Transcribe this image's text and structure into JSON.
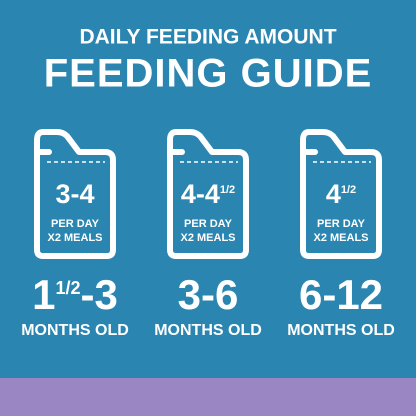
{
  "header": {
    "subtitle": "DAILY FEEDING AMOUNT",
    "title": "FEEDING GUIDE"
  },
  "columns": [
    {
      "amount": [
        {
          "text": "3-4"
        }
      ],
      "per_day": "PER DAY",
      "meals": "X2 MEALS",
      "age": [
        {
          "text": "1"
        },
        {
          "text": "1/2",
          "small": true
        },
        {
          "text": "-3"
        }
      ],
      "age_unit": "MONTHS OLD"
    },
    {
      "amount": [
        {
          "text": "4-4"
        },
        {
          "text": "1/2",
          "small": true
        }
      ],
      "per_day": "PER DAY",
      "meals": "X2 MEALS",
      "age": [
        {
          "text": "3-6"
        }
      ],
      "age_unit": "MONTHS OLD"
    },
    {
      "amount": [
        {
          "text": "4"
        },
        {
          "text": "1/2",
          "small": true
        }
      ],
      "per_day": "PER DAY",
      "meals": "X2 MEALS",
      "age": [
        {
          "text": "6-12"
        }
      ],
      "age_unit": "MONTHS OLD"
    }
  ]
}
